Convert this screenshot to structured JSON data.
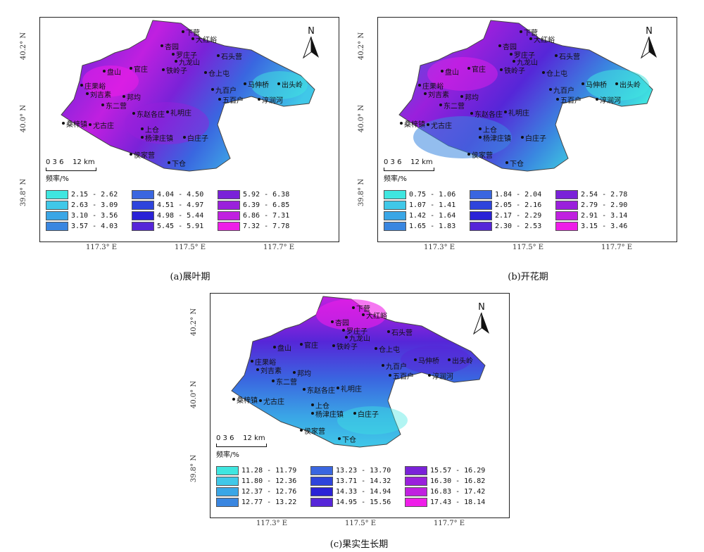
{
  "maps": [
    {
      "id": "a",
      "caption": "(a)展叶期",
      "scale_label": "0 3 6    12 km",
      "legend_title": "频率/%",
      "lat_labels": [
        "40.2° N",
        "40.0° N",
        "39.8° N"
      ],
      "lon_labels": [
        "117.3° E",
        "117.5° E",
        "117.7° E"
      ],
      "legend": [
        {
          "range": "2.15 - 2.62",
          "color": "#3fe6e0"
        },
        {
          "range": "2.63 - 3.09",
          "color": "#40c8e8"
        },
        {
          "range": "3.10 - 3.56",
          "color": "#3aa6e6"
        },
        {
          "range": "3.57 - 4.03",
          "color": "#3a86e0"
        },
        {
          "range": "4.04 - 4.50",
          "color": "#3a66e0"
        },
        {
          "range": "4.51 - 4.97",
          "color": "#2e44dc"
        },
        {
          "range": "4.98 - 5.44",
          "color": "#2a22d6"
        },
        {
          "range": "5.45 - 5.91",
          "color": "#5626d8"
        },
        {
          "range": "5.92 - 6.38",
          "color": "#7a22d8"
        },
        {
          "range": "6.39 - 6.85",
          "color": "#9a20dc"
        },
        {
          "range": "6.86 - 7.31",
          "color": "#c020e0"
        },
        {
          "range": "7.32 - 7.78",
          "color": "#ee1ee8"
        }
      ]
    },
    {
      "id": "b",
      "caption": "(b)开花期",
      "scale_label": "0 3 6    12 km",
      "legend_title": "频率/%",
      "lat_labels": [
        "40.2° N",
        "40.0° N",
        "39.8° N"
      ],
      "lon_labels": [
        "117.3° E",
        "117.5° E",
        "117.7° E"
      ],
      "legend": [
        {
          "range": "0.75 - 1.06",
          "color": "#3fe6e0"
        },
        {
          "range": "1.07 - 1.41",
          "color": "#40c8e8"
        },
        {
          "range": "1.42 - 1.64",
          "color": "#3aa6e6"
        },
        {
          "range": "1.65 - 1.83",
          "color": "#3a86e0"
        },
        {
          "range": "1.84 - 2.04",
          "color": "#3a66e0"
        },
        {
          "range": "2.05 - 2.16",
          "color": "#2e44dc"
        },
        {
          "range": "2.17 - 2.29",
          "color": "#2a22d6"
        },
        {
          "range": "2.30 - 2.53",
          "color": "#5626d8"
        },
        {
          "range": "2.54 - 2.78",
          "color": "#7a22d8"
        },
        {
          "range": "2.79 - 2.90",
          "color": "#9a20dc"
        },
        {
          "range": "2.91 - 3.14",
          "color": "#c020e0"
        },
        {
          "range": "3.15 - 3.46",
          "color": "#ee1ee8"
        }
      ]
    },
    {
      "id": "c",
      "caption": "(c)果实生长期",
      "scale_label": "0 3 6    12 km",
      "legend_title": "频率/%",
      "lat_labels": [
        "40.2° N",
        "40.0° N",
        "39.8° N"
      ],
      "lon_labels": [
        "117.3° E",
        "117.5° E",
        "117.7° E"
      ],
      "legend": [
        {
          "range": "11.28 - 11.79",
          "color": "#3fe6e0"
        },
        {
          "range": "11.80 - 12.36",
          "color": "#40c8e8"
        },
        {
          "range": "12.37 - 12.76",
          "color": "#3aa6e6"
        },
        {
          "range": "12.77 - 13.22",
          "color": "#3a86e0"
        },
        {
          "range": "13.23 - 13.70",
          "color": "#3a66e0"
        },
        {
          "range": "13.71 - 14.32",
          "color": "#2e44dc"
        },
        {
          "range": "14.33 - 14.94",
          "color": "#2a22d6"
        },
        {
          "range": "14.95 - 15.56",
          "color": "#5626d8"
        },
        {
          "range": "15.57 - 16.29",
          "color": "#7a22d8"
        },
        {
          "range": "16.30 - 16.82",
          "color": "#9a20dc"
        },
        {
          "range": "16.83 - 17.42",
          "color": "#c020e0"
        },
        {
          "range": "17.43 - 18.14",
          "color": "#ee1ee8"
        }
      ]
    }
  ],
  "place_names": [
    "下营",
    "大红峪",
    "杏园",
    "罗庄子",
    "九龙山",
    "石头营",
    "铁岭子",
    "仓上屯",
    "马伸桥",
    "出头岭",
    "盘山",
    "官庄",
    "九百户",
    "五百户",
    "淳润河",
    "庄果峪",
    "刘吉素",
    "邦均",
    "东二营",
    "东赵各庄",
    "礼明庄",
    "桑梓镇",
    "尤古庄",
    "上仓",
    "杨津庄镇",
    "白庄子",
    "侯家营",
    "下仓"
  ],
  "north_label": "N"
}
